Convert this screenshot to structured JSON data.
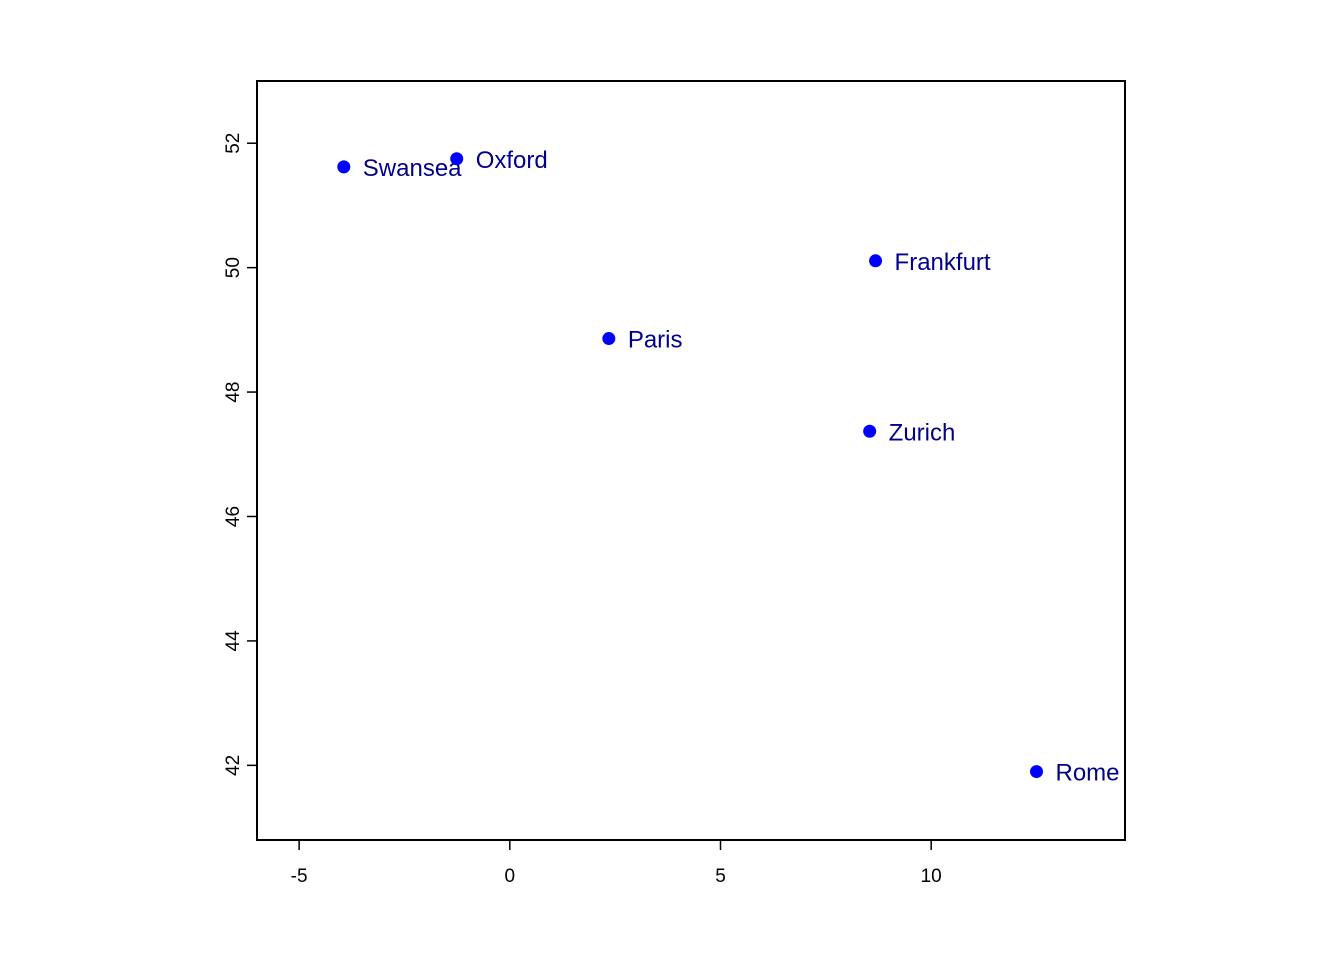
{
  "chart_data": {
    "type": "scatter",
    "title": "",
    "xlabel": "",
    "ylabel": "",
    "xlim": [
      -6,
      14.6
    ],
    "ylim": [
      40.8,
      53
    ],
    "x_ticks": [
      -5,
      0,
      5,
      10
    ],
    "y_ticks": [
      42,
      44,
      46,
      48,
      50,
      52
    ],
    "grid": false,
    "legend": "none",
    "point_color": "#0000ff",
    "label_color": "#00008b",
    "points": [
      {
        "label": "Swansea",
        "x": -3.94,
        "y": 51.62
      },
      {
        "label": "Oxford",
        "x": -1.26,
        "y": 51.75
      },
      {
        "label": "Frankfurt",
        "x": 8.68,
        "y": 50.11
      },
      {
        "label": "Paris",
        "x": 2.35,
        "y": 48.86
      },
      {
        "label": "Zurich",
        "x": 8.54,
        "y": 47.37
      },
      {
        "label": "Rome",
        "x": 12.5,
        "y": 41.9
      }
    ]
  }
}
